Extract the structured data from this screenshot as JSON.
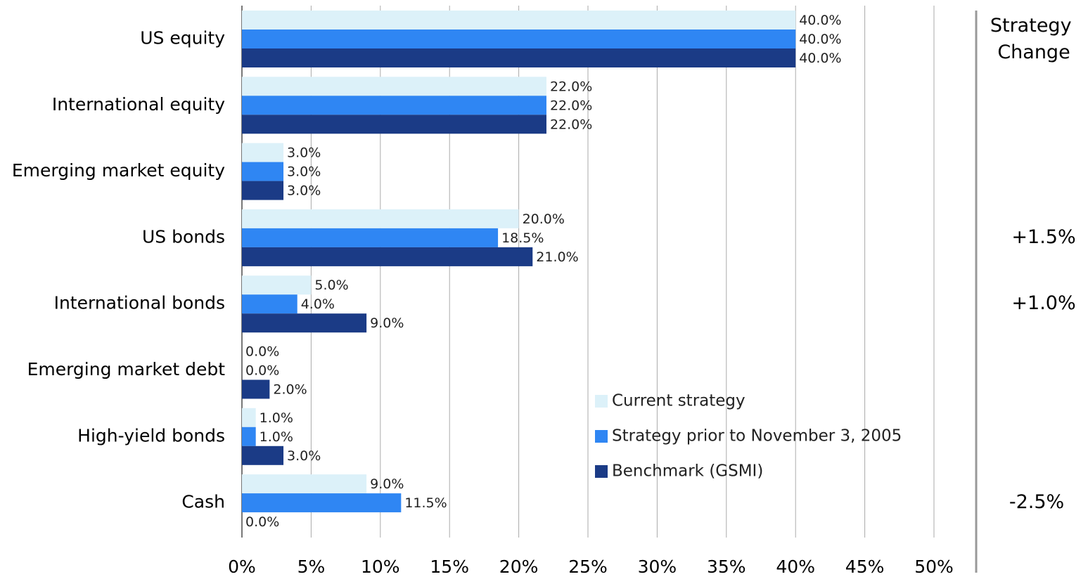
{
  "chart_data": {
    "type": "barh",
    "categories": [
      "US equity",
      "International equity",
      "Emerging market equity",
      "US bonds",
      "International bonds",
      "Emerging market debt",
      "High-yield bonds",
      "Cash"
    ],
    "series": [
      {
        "name": "Current strategy",
        "color": "#dcf1f9",
        "values": [
          40,
          22,
          3,
          20,
          5,
          0,
          1,
          9
        ],
        "value_labels": [
          "40.0%",
          "22.0%",
          "3.0%",
          "20.0%",
          "5.0%",
          "0.0%",
          "1.0%",
          "9.0%"
        ]
      },
      {
        "name": "Strategy prior to November 3, 2005",
        "color": "#2f86f3",
        "values": [
          40,
          22,
          3,
          18.5,
          4,
          0,
          1,
          11.5
        ],
        "value_labels": [
          "40.0%",
          "22.0%",
          "3.0%",
          "18.5%",
          "4.0%",
          "0.0%",
          "1.0%",
          "11.5%"
        ]
      },
      {
        "name": "Benchmark (GSMI)",
        "color": "#1b3b86",
        "values": [
          40,
          22,
          3,
          21,
          9,
          2,
          3,
          0
        ],
        "value_labels": [
          "40.0%",
          "22.0%",
          "3.0%",
          "21.0%",
          "9.0%",
          "2.0%",
          "3.0%",
          "0.0%"
        ]
      }
    ],
    "xlim": [
      0,
      50
    ],
    "xticks": [
      {
        "value": 0,
        "label": "0%"
      },
      {
        "value": 5,
        "label": "5%"
      },
      {
        "value": 10,
        "label": "10%"
      },
      {
        "value": 15,
        "label": "15%"
      },
      {
        "value": 20,
        "label": "20%"
      },
      {
        "value": 25,
        "label": "25%"
      },
      {
        "value": 30,
        "label": "30%"
      },
      {
        "value": 35,
        "label": "35%"
      },
      {
        "value": 40,
        "label": "40%"
      },
      {
        "value": 45,
        "label": "45%"
      },
      {
        "value": 50,
        "label": "50%"
      }
    ],
    "grid": true,
    "legend": "lower right",
    "strategy_change": {
      "title": "Strategy Change",
      "labels": [
        null,
        null,
        null,
        "+1.5%",
        "+1.0%",
        null,
        null,
        "-2.5%"
      ],
      "positive_color": "#e46c0a",
      "negative_color": "#1a8a3c"
    }
  }
}
